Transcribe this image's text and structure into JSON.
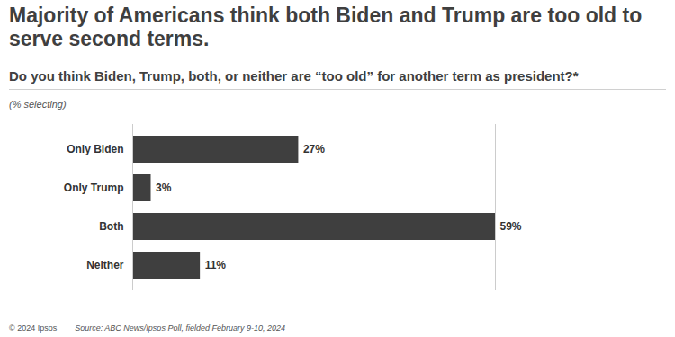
{
  "chart_data": {
    "type": "bar",
    "title": "Majority of Americans think both Biden and Trump are too old to serve second terms.",
    "subtitle": "Do you think Biden, Trump, both, or neither are “too old” for another term as president?*",
    "annotations": [
      "(% selecting)",
      "© 2024 Ipsos",
      "Source: ABC News/Ipsos Poll, fielded February 9-10, 2024"
    ],
    "categories": [
      "Only Biden",
      "Only Trump",
      "Both",
      "Neither"
    ],
    "values": [
      27,
      3,
      59,
      11
    ],
    "value_labels": [
      "27%",
      "3%",
      "59%",
      "11%"
    ],
    "color": "#3f3f3f",
    "orientation": "horizontal",
    "data_labels": true,
    "tick_labels": "y",
    "grid": false,
    "xlim": [
      0,
      59
    ]
  }
}
